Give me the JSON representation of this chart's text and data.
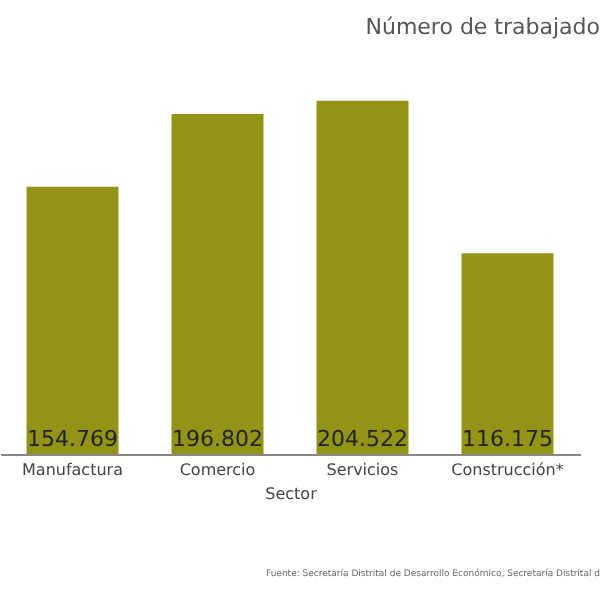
{
  "chart_data": {
    "type": "bar",
    "title": "Número de trabajado",
    "xlabel": "Sector",
    "categories": [
      "Manufactura",
      "Comercio",
      "Servicios",
      "Construcción*"
    ],
    "values": [
      154769,
      196802,
      204522,
      116175
    ],
    "color": "#939318",
    "value_labels": [
      "154.769",
      "196.802",
      "204.522",
      "116.175"
    ],
    "tick_labels": "x",
    "annotations": [
      "Fuente: Secretaría Distrital de Desarrollo Económico, Secretaría Distrital d"
    ]
  }
}
